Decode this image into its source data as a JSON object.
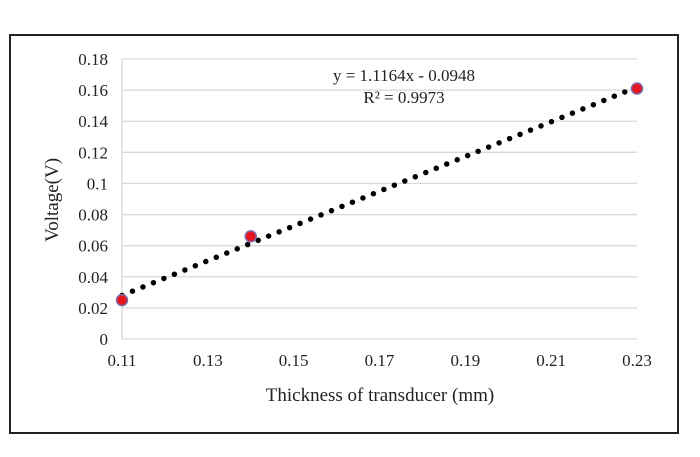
{
  "chart_data": {
    "type": "scatter",
    "title": "",
    "xlabel": "Thickness of transducer (mm)",
    "ylabel": "Voltage(V)",
    "xlim": [
      0.11,
      0.23
    ],
    "ylim": [
      0,
      0.18
    ],
    "x_ticks": [
      "0.11",
      "0.13",
      "0.15",
      "0.17",
      "0.19",
      "0.21",
      "0.23"
    ],
    "y_ticks": [
      "0",
      "0.02",
      "0.04",
      "0.06",
      "0.08",
      "0.1",
      "0.12",
      "0.14",
      "0.16",
      "0.18"
    ],
    "grid": "horizontal",
    "points": [
      {
        "x": 0.11,
        "y": 0.025
      },
      {
        "x": 0.14,
        "y": 0.066
      },
      {
        "x": 0.23,
        "y": 0.161
      }
    ],
    "trendline": {
      "type": "linear",
      "slope": 1.1164,
      "intercept": -0.0948,
      "style": "dotted",
      "color": "#000000"
    },
    "annotations": {
      "equation": "y = 1.1164x - 0.0948",
      "r_squared": "R² = 0.9973"
    },
    "marker_color": "#e8141e",
    "marker_edge_color": "#7a6aa8"
  }
}
